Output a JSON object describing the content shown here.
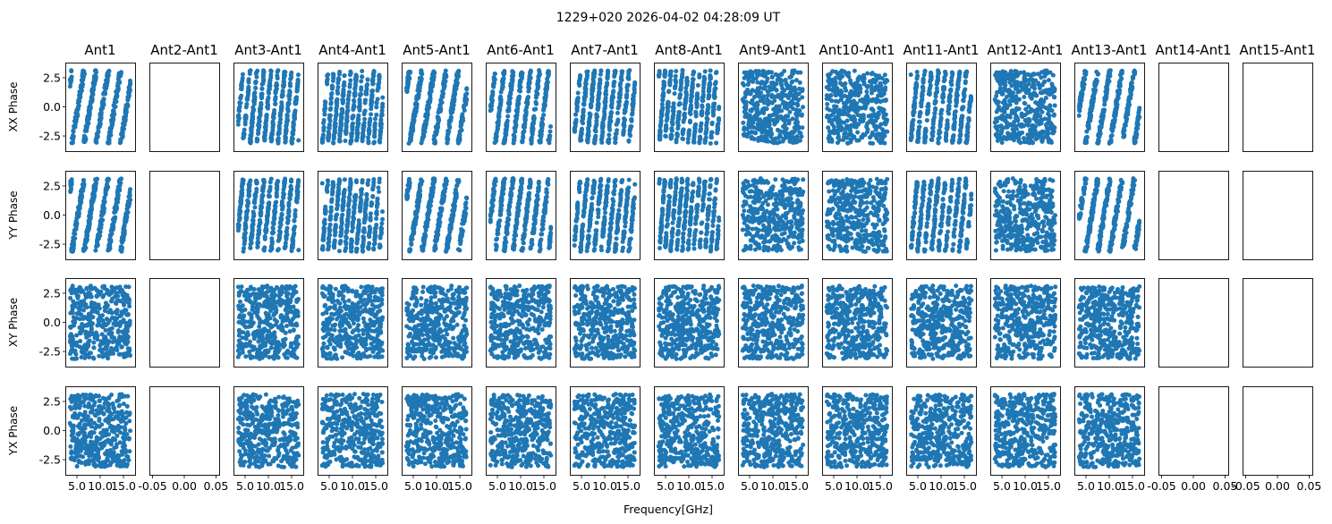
{
  "figure": {
    "title": "1229+020 2026-04-02 04:28:09 UT",
    "xlabel": "Frequency[GHz]"
  },
  "chart_data": {
    "type": "scatter",
    "title": "1229+020 2026-04-02 04:28:09 UT",
    "xlabel": "Frequency[GHz]",
    "columns": [
      "Ant1",
      "Ant2-Ant1",
      "Ant3-Ant1",
      "Ant4-Ant1",
      "Ant5-Ant1",
      "Ant6-Ant1",
      "Ant7-Ant1",
      "Ant8-Ant1",
      "Ant9-Ant1",
      "Ant10-Ant1",
      "Ant11-Ant1",
      "Ant12-Ant1",
      "Ant13-Ant1",
      "Ant14-Ant1",
      "Ant15-Ant1"
    ],
    "rows": [
      "XX Phase",
      "YY Phase",
      "XY Phase",
      "YX Phase"
    ],
    "empty_columns": [
      "Ant2-Ant1",
      "Ant14-Ant1",
      "Ant15-Ant1"
    ],
    "xlim": [
      2.5,
      17.5
    ],
    "ylim": [
      -3.8,
      3.8
    ],
    "x_range_ghz": [
      3.5,
      16.5
    ],
    "y_range_rad": [
      -3.14,
      3.14
    ],
    "yticks": [
      "2.5",
      "0.0",
      "-2.5"
    ],
    "yticks_values": [
      2.5,
      0.0,
      -2.5
    ],
    "xticks": [
      "5.0",
      "10.0",
      "15.0"
    ],
    "xticks_values": [
      5,
      10,
      15
    ],
    "xticks_empty": [
      "-0.05",
      "0.00",
      "0.05"
    ],
    "xticks_empty_values": [
      -0.05,
      0.0,
      0.05
    ],
    "marker_color": "#1f77b4",
    "grid": false
  }
}
